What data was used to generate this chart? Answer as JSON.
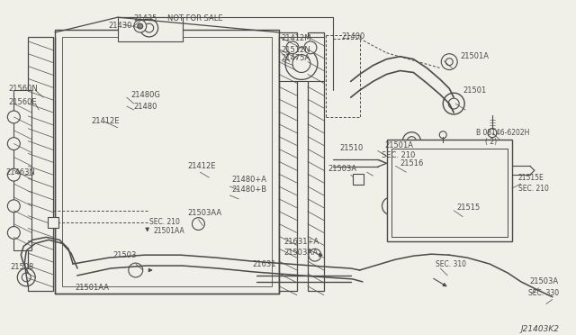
{
  "bg_color": "#f0efe8",
  "line_color": "#4a4a4a",
  "diagram_id": "J21403K2",
  "fig_w": 6.4,
  "fig_h": 3.72,
  "xlim": [
    0,
    640
  ],
  "ylim": [
    0,
    372
  ]
}
